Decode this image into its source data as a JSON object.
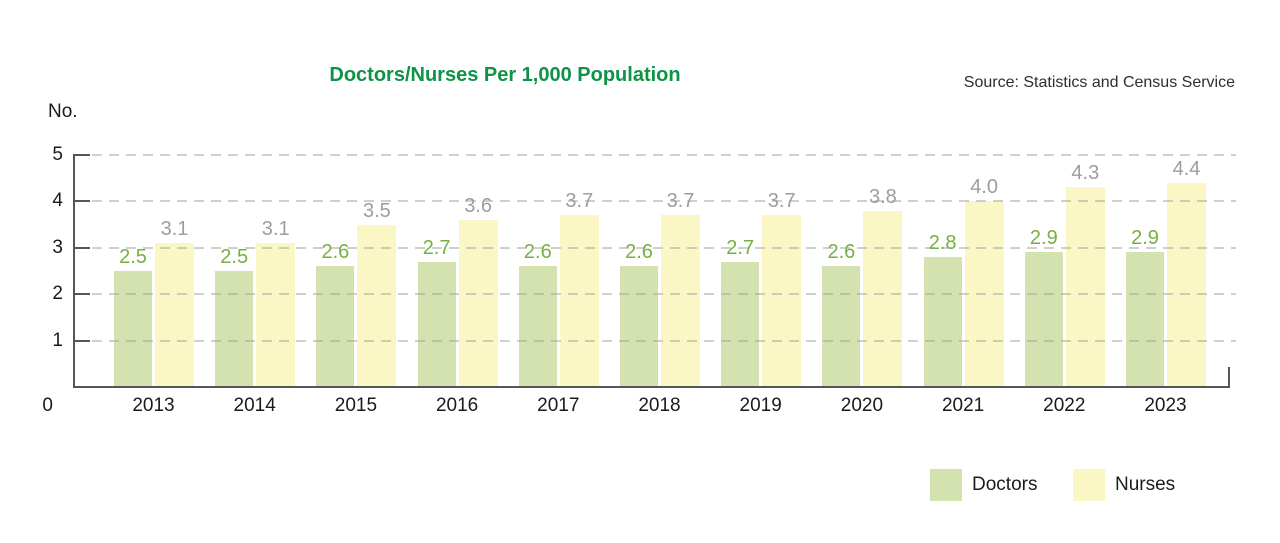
{
  "header": {
    "source": "Source: Statistics and Census Service"
  },
  "colors": {
    "title_green": "#0e9347",
    "doctors_bar": "#d3e2ae",
    "nurses_bar": "#faf7c5",
    "doctors_label": "#76b043",
    "nurses_label": "#9c9e9e",
    "axis": "#55565a",
    "gridline": "#d6d6d6"
  },
  "chart_data": {
    "type": "bar",
    "title": "Doctors/Nurses Per 1,000 Population",
    "ylabel": "No.",
    "xlabel": "",
    "categories": [
      "2013",
      "2014",
      "2015",
      "2016",
      "2017",
      "2018",
      "2019",
      "2020",
      "2021",
      "2022",
      "2023"
    ],
    "series": [
      {
        "name": "Doctors",
        "color": "#d3e2ae",
        "label_color": "#76b043",
        "values": [
          2.5,
          2.5,
          2.6,
          2.7,
          2.6,
          2.6,
          2.7,
          2.6,
          2.8,
          2.9,
          2.9
        ]
      },
      {
        "name": "Nurses",
        "color": "#faf7c5",
        "label_color": "#9c9e9e",
        "values": [
          3.1,
          3.1,
          3.5,
          3.6,
          3.7,
          3.7,
          3.7,
          3.8,
          4.0,
          4.3,
          4.4
        ]
      }
    ],
    "ylim": [
      0,
      5
    ],
    "yticks": [
      0,
      1,
      2,
      3,
      4,
      5
    ],
    "origin_label": "0",
    "grid": "horizontal-dashed",
    "data_labels": "one-decimal",
    "legend_position": "bottom-right"
  }
}
